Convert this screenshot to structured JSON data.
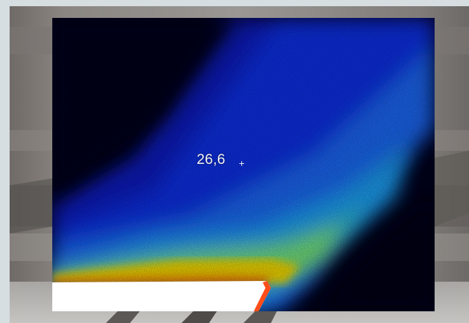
{
  "thermal_image": {
    "temperature_reading": "26,6",
    "marker_icon": "crosshair-icon"
  },
  "palette": {
    "cold": "#00001e",
    "cool": "#0a24e6",
    "mid": "#1aa7ff",
    "warm": "#7cf07a",
    "hot": "#ffe400",
    "hotter": "#ff4d00",
    "saturated": "#ffffff"
  }
}
